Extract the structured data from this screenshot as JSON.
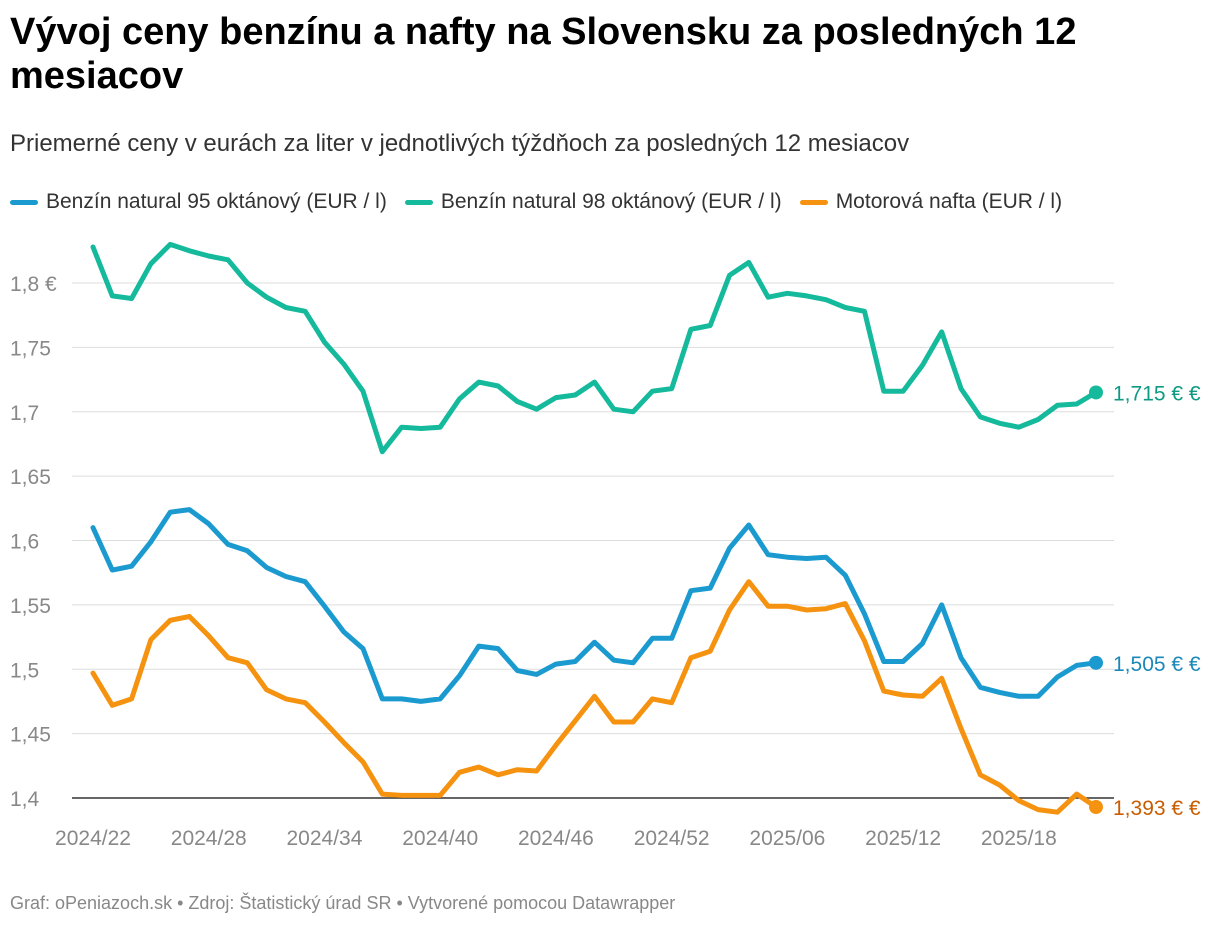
{
  "title": "Vývoj ceny benzínu a nafty na Slovensku za posledných 12 mesiacov",
  "subtitle": "Priemerné ceny v eurách za liter v jednotlivých týždňoch za posledných 12 mesiacov",
  "footer": "Graf: oPeniazoch.sk • Zdroj: Štatistický úrad SR • Vytvorené pomocou Datawrapper",
  "chart_data": {
    "type": "line",
    "title": "Vývoj ceny benzínu a nafty na Slovensku za posledných 12 mesiacov",
    "subtitle": "Priemerné ceny v eurách za liter v jednotlivých týždňoch za posledných 12 mesiacov",
    "xlabel": "",
    "ylabel": "",
    "ylim": [
      1.385,
      1.835
    ],
    "grid": true,
    "legend_position": "top",
    "x_tick_labels": [
      "2024/22",
      "2024/28",
      "2024/34",
      "2024/40",
      "2024/46",
      "2024/52",
      "2025/06",
      "2025/12",
      "2025/18"
    ],
    "y_tick_labels": [
      "1,4",
      "1,45",
      "1,5",
      "1,55",
      "1,6",
      "1,65",
      "1,7",
      "1,75",
      "1,8 €"
    ],
    "y_ticks": [
      1.4,
      1.45,
      1.5,
      1.55,
      1.6,
      1.65,
      1.7,
      1.75,
      1.8
    ],
    "series": [
      {
        "name": "Benzín natural 95 oktánový (EUR / l)",
        "color": "#1b9ad0",
        "end_label": "1,505 € €",
        "label_color": "#1b88b8",
        "values": [
          1.61,
          1.577,
          1.58,
          1.599,
          1.622,
          1.624,
          1.613,
          1.597,
          1.592,
          1.579,
          1.572,
          1.568,
          1.549,
          1.529,
          1.516,
          1.477,
          1.477,
          1.475,
          1.477,
          1.495,
          1.518,
          1.516,
          1.499,
          1.496,
          1.504,
          1.506,
          1.521,
          1.507,
          1.505,
          1.524,
          1.524,
          1.561,
          1.563,
          1.594,
          1.612,
          1.589,
          1.587,
          1.586,
          1.587,
          1.573,
          1.543,
          1.506,
          1.506,
          1.52,
          1.55,
          1.509,
          1.486,
          1.482,
          1.479,
          1.479,
          1.494,
          1.503,
          1.505
        ]
      },
      {
        "name": "Benzín natural 98 oktánový (EUR / l)",
        "color": "#15b99c",
        "end_label": "1,715 € €",
        "label_color": "#0f9a83",
        "values": [
          1.828,
          1.79,
          1.788,
          1.815,
          1.83,
          1.825,
          1.821,
          1.818,
          1.8,
          1.789,
          1.781,
          1.778,
          1.754,
          1.737,
          1.716,
          1.669,
          1.688,
          1.687,
          1.688,
          1.71,
          1.723,
          1.72,
          1.708,
          1.702,
          1.711,
          1.713,
          1.723,
          1.702,
          1.7,
          1.716,
          1.718,
          1.764,
          1.767,
          1.806,
          1.816,
          1.789,
          1.792,
          1.79,
          1.787,
          1.781,
          1.778,
          1.716,
          1.716,
          1.736,
          1.762,
          1.718,
          1.696,
          1.691,
          1.688,
          1.694,
          1.705,
          1.706,
          1.715
        ]
      },
      {
        "name": "Motorová nafta (EUR / l)",
        "color": "#f5920f",
        "end_label": "1,393 € €",
        "label_color": "#c85d00",
        "values": [
          1.497,
          1.472,
          1.477,
          1.523,
          1.538,
          1.541,
          1.526,
          1.509,
          1.505,
          1.484,
          1.477,
          1.474,
          1.459,
          1.443,
          1.428,
          1.403,
          1.402,
          1.402,
          1.402,
          1.42,
          1.424,
          1.418,
          1.422,
          1.421,
          1.441,
          1.46,
          1.479,
          1.459,
          1.459,
          1.477,
          1.474,
          1.509,
          1.514,
          1.546,
          1.568,
          1.549,
          1.549,
          1.546,
          1.547,
          1.551,
          1.522,
          1.483,
          1.48,
          1.479,
          1.493,
          1.454,
          1.418,
          1.41,
          1.398,
          1.391,
          1.389,
          1.403,
          1.393
        ]
      }
    ]
  }
}
